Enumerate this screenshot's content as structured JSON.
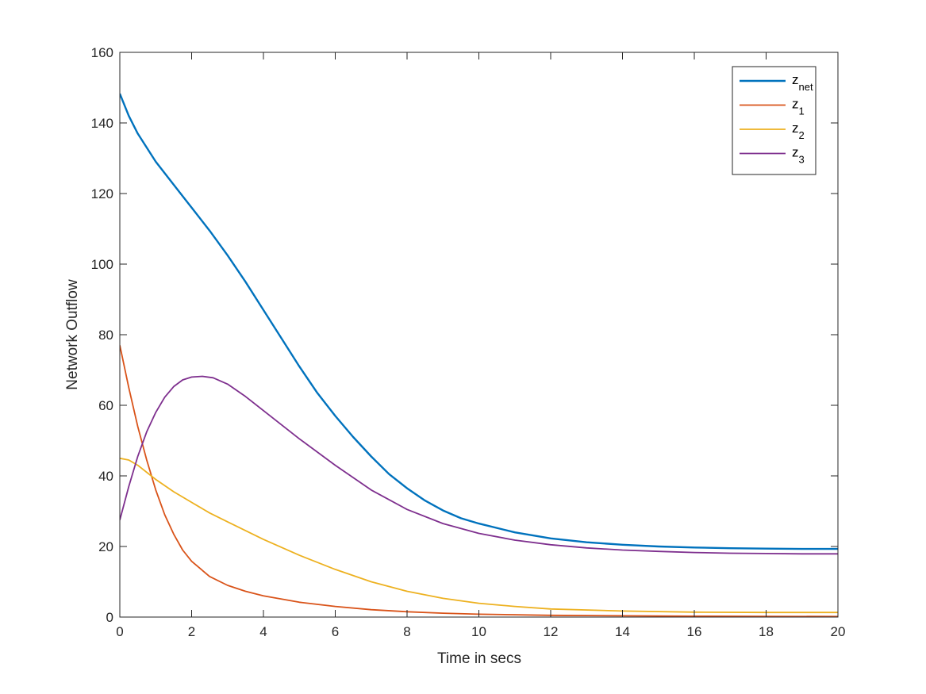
{
  "chart_data": {
    "type": "line",
    "xlabel": "Time in secs",
    "ylabel": "Network Outflow",
    "xlim": [
      0,
      20
    ],
    "ylim": [
      0,
      160
    ],
    "xticks": [
      0,
      2,
      4,
      6,
      8,
      10,
      12,
      14,
      16,
      18,
      20
    ],
    "yticks": [
      0,
      20,
      40,
      60,
      80,
      100,
      120,
      140,
      160
    ],
    "grid": false,
    "legend_position": "top-right",
    "series": [
      {
        "name": "z_net",
        "name_main": "z",
        "name_sub": "net",
        "color": "#0072BD",
        "x": [
          0,
          0.25,
          0.5,
          1,
          1.5,
          2,
          2.5,
          3,
          3.5,
          4,
          4.5,
          5,
          5.5,
          6,
          6.5,
          7,
          7.5,
          8,
          8.5,
          9,
          9.5,
          10,
          11,
          12,
          13,
          14,
          15,
          16,
          17,
          18,
          19,
          20
        ],
        "y": [
          148.3,
          142,
          137,
          129,
          122.5,
          116,
          109.5,
          102.5,
          95,
          87,
          79,
          71,
          63.5,
          57,
          51,
          45.5,
          40.5,
          36.5,
          33,
          30.2,
          28,
          26.5,
          24,
          22.3,
          21.2,
          20.5,
          20,
          19.7,
          19.5,
          19.4,
          19.3,
          19.3
        ]
      },
      {
        "name": "z_1",
        "name_main": "z",
        "name_sub": "1",
        "color": "#D95319",
        "x": [
          0,
          0.25,
          0.5,
          0.75,
          1,
          1.25,
          1.5,
          1.75,
          2,
          2.5,
          3,
          3.5,
          4,
          5,
          6,
          7,
          8,
          9,
          10,
          12,
          14,
          16,
          18,
          20
        ],
        "y": [
          77,
          65,
          54,
          44.5,
          36,
          29,
          23.5,
          19,
          15.8,
          11.5,
          9,
          7.3,
          6,
          4.2,
          3,
          2.1,
          1.5,
          1.1,
          0.8,
          0.5,
          0.35,
          0.25,
          0.2,
          0.15
        ]
      },
      {
        "name": "z_2",
        "name_main": "z",
        "name_sub": "2",
        "color": "#EDB120",
        "x": [
          0,
          0.25,
          0.5,
          1,
          1.5,
          2,
          2.5,
          3,
          4,
          5,
          6,
          7,
          8,
          9,
          10,
          11,
          12,
          14,
          16,
          18,
          20
        ],
        "y": [
          45,
          44.5,
          43,
          39,
          35.5,
          32.5,
          29.5,
          27,
          22,
          17.5,
          13.5,
          10,
          7.3,
          5.3,
          3.9,
          3,
          2.3,
          1.7,
          1.4,
          1.3,
          1.3
        ]
      },
      {
        "name": "z_3",
        "name_main": "z",
        "name_sub": "3",
        "color": "#7E2F8E",
        "x": [
          0,
          0.25,
          0.5,
          0.75,
          1,
          1.25,
          1.5,
          1.75,
          2,
          2.3,
          2.6,
          3,
          3.5,
          4,
          5,
          6,
          7,
          8,
          9,
          10,
          11,
          12,
          13,
          14,
          15,
          16,
          17,
          18,
          19,
          20
        ],
        "y": [
          27.5,
          37,
          45.5,
          52.5,
          58,
          62.3,
          65.3,
          67.2,
          68,
          68.2,
          67.8,
          66,
          62.5,
          58.5,
          50.5,
          43,
          36,
          30.5,
          26.5,
          23.7,
          21.8,
          20.5,
          19.6,
          19,
          18.6,
          18.3,
          18.1,
          18,
          17.9,
          17.9
        ]
      }
    ]
  }
}
